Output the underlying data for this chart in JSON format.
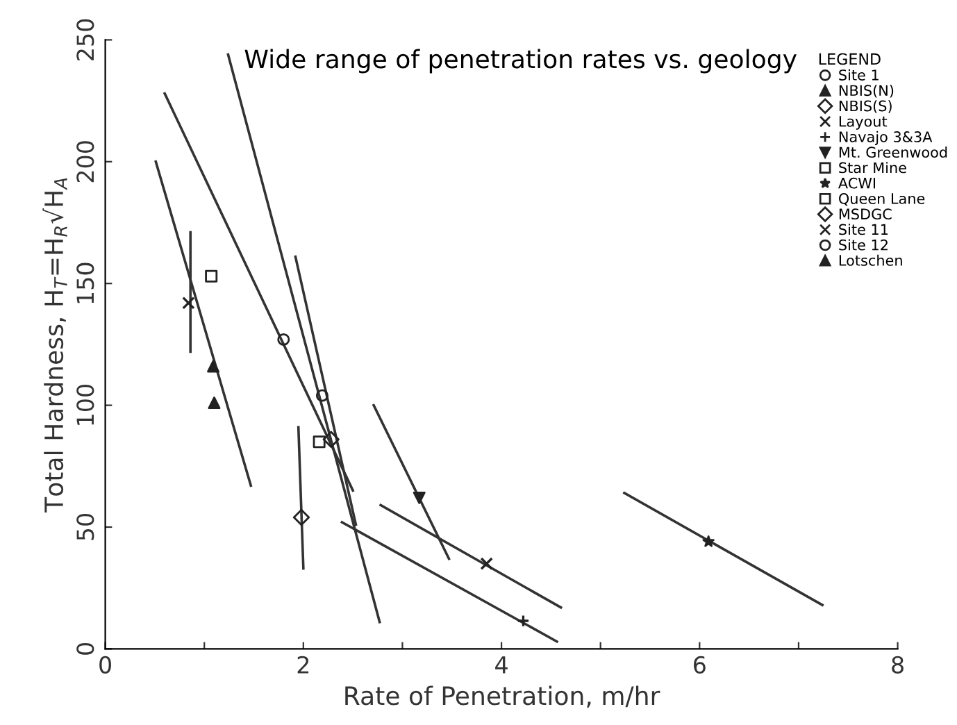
{
  "chart_data": {
    "type": "scatter",
    "title": "Wide range of penetration rates vs. geology",
    "xlabel": "Rate of Penetration, m/hr",
    "ylabel": "Total Hardness, H$_{T}$=H$_{R}$√H$_{A}$",
    "legend_title": "LEGEND",
    "xlim": [
      0,
      8
    ],
    "ylim": [
      0,
      250
    ],
    "xticks": [
      0,
      {
        "value": 1,
        "label": null
      },
      2,
      {
        "value": 3,
        "label": null
      },
      4,
      {
        "value": 5,
        "label": null
      },
      6,
      {
        "value": 7,
        "label": null
      },
      8
    ],
    "yticks": [
      0,
      50,
      100,
      150,
      200,
      250
    ],
    "grid": false,
    "legend": "top right",
    "series": [
      {
        "name": "Site 1",
        "color": "#222222",
        "marker": "circle",
        "x": [
          1.8
        ],
        "values": [
          127
        ]
      },
      {
        "name": "NBIS(N)",
        "color": "#222222",
        "marker": "triangle",
        "x": [
          1.09
        ],
        "values": [
          116
        ]
      },
      {
        "name": "NBIS(S)",
        "color": "#222222",
        "marker": "diamond",
        "x": [
          2.28
        ],
        "values": [
          86
        ]
      },
      {
        "name": "Layout",
        "color": "#222222",
        "marker": "cross",
        "x": [
          3.85
        ],
        "values": [
          35
        ]
      },
      {
        "name": "Navajo 3&3A",
        "color": "#222222",
        "marker": "plus",
        "x": [
          4.22
        ],
        "values": [
          11.5
        ]
      },
      {
        "name": "Mt. Greenwood",
        "color": "#222222",
        "marker": "triangle_down",
        "x": [
          3.17
        ],
        "values": [
          62
        ]
      },
      {
        "name": "Star Mine",
        "color": "#222222",
        "marker": "square",
        "x": [
          1.07
        ],
        "values": [
          153
        ]
      },
      {
        "name": "ACWI",
        "color": "#222222",
        "marker": "star",
        "x": [
          6.09
        ],
        "values": [
          44
        ]
      },
      {
        "name": "Queen Lane",
        "color": "#222222",
        "marker": "square",
        "x": [
          2.16
        ],
        "values": [
          85
        ]
      },
      {
        "name": "MSDGC",
        "color": "#222222",
        "marker": "diamond",
        "x": [
          1.98
        ],
        "values": [
          54
        ]
      },
      {
        "name": "Site 11",
        "color": "#222222",
        "marker": "cross",
        "x": [
          0.84
        ],
        "values": [
          142
        ]
      },
      {
        "name": "Site 12",
        "color": "#222222",
        "marker": "circle",
        "x": [
          2.19
        ],
        "values": [
          104
        ]
      },
      {
        "name": "Lotschen",
        "color": "#222222",
        "marker": "triangle",
        "x": [
          1.1
        ],
        "values": [
          101
        ]
      },
      {
        "type": "line",
        "color": "#333333",
        "x": [
          0.51,
          1.47
        ],
        "values": [
          200,
          67
        ]
      },
      {
        "type": "line",
        "color": "#333333",
        "x": [
          0.6,
          2.5
        ],
        "values": [
          228,
          65
        ]
      },
      {
        "type": "line",
        "color": "#333333",
        "x": [
          1.24,
          2.77
        ],
        "values": [
          244,
          11
        ]
      },
      {
        "type": "line",
        "color": "#333333",
        "x": [
          1.92,
          2.53
        ],
        "values": [
          161,
          51
        ]
      },
      {
        "type": "line",
        "color": "#333333",
        "x": [
          1.95,
          2.0
        ],
        "values": [
          91,
          33
        ]
      },
      {
        "type": "line",
        "color": "#333333",
        "x": [
          0.86,
          0.86
        ],
        "values": [
          171,
          122
        ]
      },
      {
        "type": "line",
        "color": "#333333",
        "x": [
          2.71,
          3.47
        ],
        "values": [
          100,
          37
        ]
      },
      {
        "type": "line",
        "color": "#333333",
        "x": [
          2.78,
          4.6
        ],
        "values": [
          59,
          17
        ]
      },
      {
        "type": "line",
        "color": "#333333",
        "x": [
          2.39,
          4.56
        ],
        "values": [
          52,
          3
        ]
      },
      {
        "type": "line",
        "color": "#333333",
        "x": [
          5.24,
          7.24
        ],
        "values": [
          64,
          18
        ]
      }
    ]
  }
}
